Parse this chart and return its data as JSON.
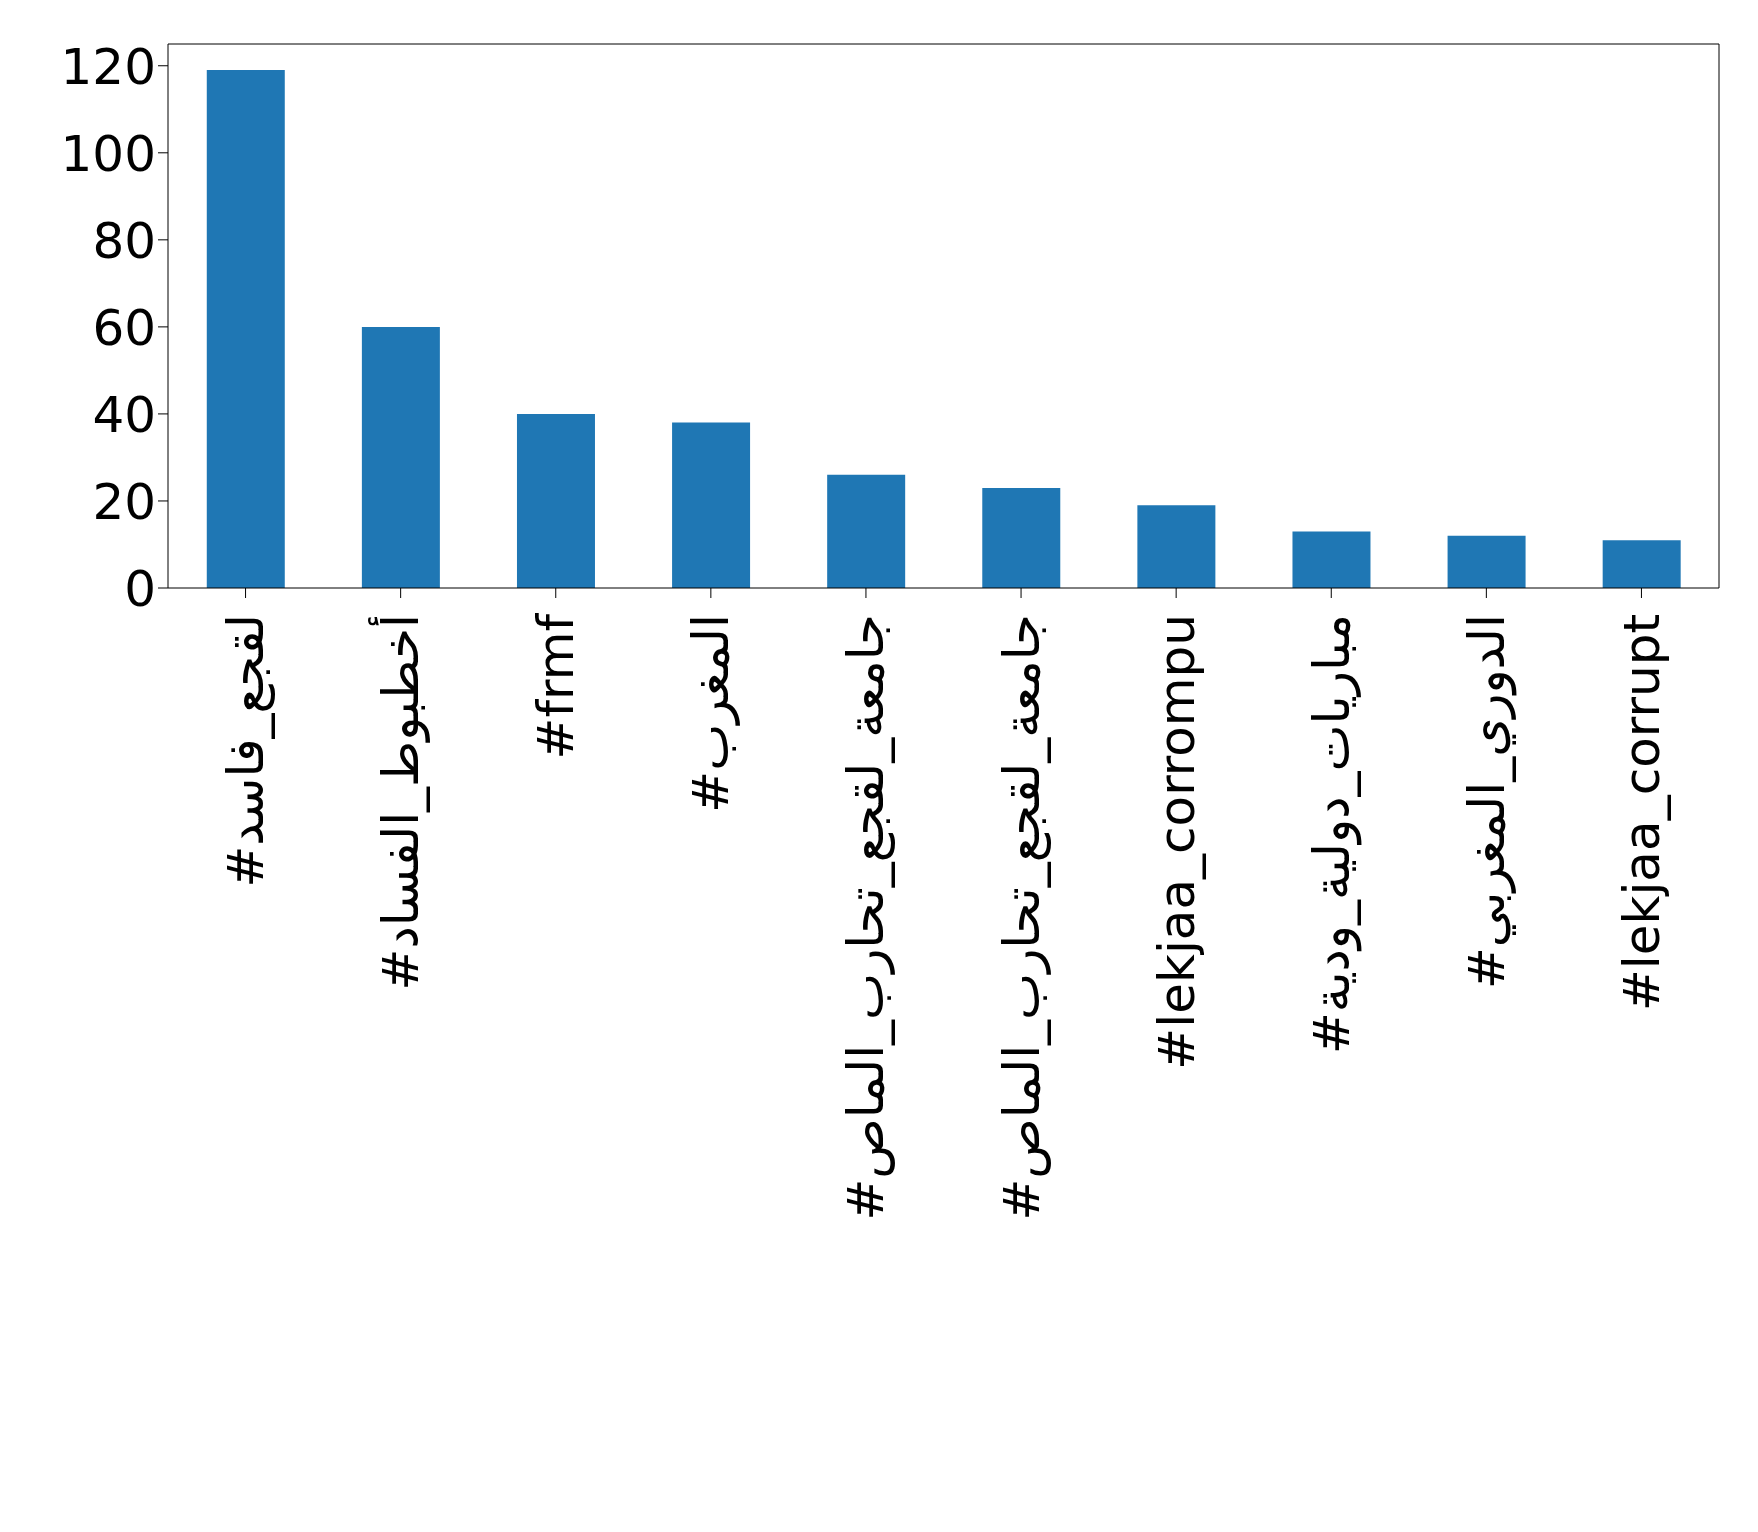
{
  "chart_data": {
    "type": "bar",
    "categories": [
      "#لقجع_فاسد",
      "#أخطبوط_الفساد",
      "#frmf",
      "#المغرب",
      "#جامعة_لقجع_تحارب_الماص",
      "#جامعة_لقجع_تحارب_الماص",
      "#lekjaa_corrompu",
      "#مباريات_دولية_ودية",
      "#الدوري_المغربي",
      "#lekjaa_corrupt"
    ],
    "values": [
      119,
      60,
      40,
      38,
      26,
      23,
      19,
      13,
      12,
      11
    ],
    "color": "#1f77b4",
    "ylim": [
      0,
      125
    ],
    "yticks": [
      0,
      20,
      40,
      60,
      80,
      100,
      120
    ],
    "grid": false
  }
}
